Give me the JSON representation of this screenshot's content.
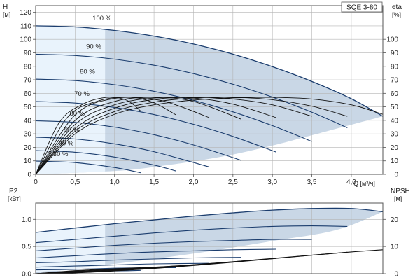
{
  "chart_data": [
    {
      "type": "line",
      "title": "SQE 3-80",
      "xlabel": "Q [м³/ч]",
      "ylabel": "H [м]",
      "y2label": "eta [%]",
      "ylabel_parts": [
        "H",
        "[м]"
      ],
      "y2label_parts": [
        "eta",
        "[%]"
      ],
      "xlim": [
        0,
        4.4
      ],
      "ylim": [
        0,
        125
      ],
      "y2lim": [
        0,
        125
      ],
      "x_ticks": [
        0,
        0.5,
        1.0,
        1.5,
        2.0,
        2.5,
        3.0,
        3.5,
        4.0
      ],
      "x_tick_labels": [
        "0",
        "0,5",
        "1,0",
        "1,5",
        "2,0",
        "2,5",
        "3,0",
        "3,5",
        "4,0"
      ],
      "y_ticks": [
        0,
        10,
        20,
        30,
        40,
        50,
        60,
        70,
        80,
        90,
        100,
        110,
        120
      ],
      "y2_ticks": [
        0,
        10,
        20,
        30,
        40,
        50,
        60,
        70,
        80,
        90,
        100
      ],
      "grid": true,
      "operating_area": {
        "color": "#c9d7e6",
        "light_color": "#e9f3fc",
        "light_x_end": 0.88,
        "boundary_x": [
          0,
          0.5,
          1.0,
          1.5,
          2.0,
          2.5,
          3.0,
          3.5,
          4.0,
          4.4,
          3.5,
          3.0,
          2.5,
          2.0,
          1.5,
          1.3,
          1.0,
          0
        ],
        "boundary_y": [
          110,
          109.2,
          106.6,
          102.4,
          96.5,
          89,
          79.7,
          68.8,
          56,
          43,
          29,
          21.3,
          14.7,
          9.6,
          5.5,
          4,
          2.5,
          0
        ]
      },
      "series": [
        {
          "name": "100 %",
          "x": [
            0,
            0.5,
            1.0,
            1.5,
            2.0,
            2.5,
            3.0,
            3.5,
            4.0,
            4.4
          ],
          "values": [
            110,
            109.2,
            106.6,
            102.4,
            96.5,
            89,
            79.7,
            68.8,
            56,
            43
          ],
          "label_at": [
            0.72,
            114
          ]
        },
        {
          "name": "90 %",
          "x": [
            0,
            0.5,
            1.0,
            1.5,
            2.0,
            2.5,
            3.0,
            3.5,
            3.95
          ],
          "values": [
            89,
            88,
            85.3,
            80.8,
            74.6,
            66.7,
            57.2,
            46,
            34.5
          ],
          "label_at": [
            0.64,
            93
          ]
        },
        {
          "name": "80 %",
          "x": [
            0,
            0.5,
            1.0,
            1.5,
            2.0,
            2.5,
            3.0,
            3.5
          ],
          "values": [
            70.5,
            69.4,
            66.4,
            61.5,
            54.8,
            46.3,
            36.1,
            24.4
          ],
          "label_at": [
            0.56,
            74.5
          ]
        },
        {
          "name": "70 %",
          "x": [
            0,
            0.5,
            1.0,
            1.5,
            2.0,
            2.5,
            3.05
          ],
          "values": [
            54,
            52.8,
            49.6,
            44.3,
            37.1,
            28.1,
            16.5
          ],
          "label_at": [
            0.49,
            58
          ]
        },
        {
          "name": "60 %",
          "x": [
            0,
            0.5,
            1.0,
            1.5,
            2.0,
            2.6
          ],
          "values": [
            39.7,
            38.5,
            35,
            29.4,
            21.8,
            10.5
          ],
          "label_at": [
            0.43,
            43.5
          ]
        },
        {
          "name": "50 %",
          "x": [
            0,
            0.5,
            1.0,
            1.5,
            2.2
          ],
          "values": [
            27.5,
            26.2,
            22.6,
            16.8,
            5.5
          ],
          "label_at": [
            0.36,
            31
          ]
        },
        {
          "name": "40 %",
          "x": [
            0,
            0.5,
            1.0,
            1.5,
            1.78
          ],
          "values": [
            17.6,
            16.4,
            12.8,
            6.9,
            2.5
          ],
          "label_at": [
            0.29,
            21.5
          ]
        },
        {
          "name": "30 %",
          "x": [
            0,
            0.5,
            1.0,
            1.33
          ],
          "values": [
            9.9,
            8.7,
            5.1,
            1.2
          ],
          "label_at": [
            0.22,
            13.5
          ]
        }
      ],
      "efficiency_series": [
        {
          "x": [
            0,
            0.5,
            1.0,
            1.5,
            2.0,
            2.5,
            3.0,
            3.5,
            4.0,
            4.4
          ],
          "values": [
            0,
            30,
            44.5,
            51.5,
            55,
            56.6,
            57,
            55.8,
            51.5,
            44.5
          ]
        },
        {
          "x": [
            0,
            0.5,
            1.0,
            1.5,
            2.0,
            2.5,
            3.0,
            3.5,
            3.95
          ],
          "values": [
            0,
            32,
            46.5,
            53.5,
            56.5,
            57,
            55.3,
            50.5,
            43
          ]
        },
        {
          "x": [
            0,
            0.5,
            1.0,
            1.5,
            2.0,
            2.5,
            3.0,
            3.5
          ],
          "values": [
            0,
            34,
            49,
            55.5,
            57,
            55.8,
            51.5,
            43
          ]
        },
        {
          "x": [
            0,
            0.5,
            1.0,
            1.5,
            2.0,
            2.5,
            3.05
          ],
          "values": [
            0,
            37,
            51.5,
            56.5,
            56.5,
            52,
            42
          ]
        },
        {
          "x": [
            0,
            0.5,
            1.0,
            1.5,
            2.0,
            2.6
          ],
          "values": [
            0,
            40,
            54,
            57,
            54,
            41
          ]
        },
        {
          "x": [
            0,
            0.5,
            1.0,
            1.5,
            1.8,
            2.2
          ],
          "values": [
            0,
            44,
            56.2,
            55.5,
            51,
            42
          ]
        },
        {
          "x": [
            0,
            0.4,
            0.8,
            1.2,
            1.5,
            1.78
          ],
          "values": [
            0,
            42,
            54.5,
            57,
            53,
            44
          ]
        },
        {
          "x": [
            0,
            0.3,
            0.6,
            0.9,
            1.15,
            1.33
          ],
          "values": [
            0,
            38.5,
            52,
            57,
            55,
            47
          ]
        }
      ]
    },
    {
      "type": "line",
      "xlabel": "",
      "ylabel": "P2 [кВт]",
      "y2label": "NPSH [м]",
      "ylabel_parts": [
        "P2",
        "[кВт]"
      ],
      "y2label_parts": [
        "NPSH",
        "[м]"
      ],
      "xlim": [
        0,
        4.4
      ],
      "ylim": [
        0,
        1.3
      ],
      "y2lim": [
        0,
        26
      ],
      "y_ticks": [
        0,
        0.5,
        1.0
      ],
      "y_tick_labels": [
        "0.0",
        "0.5",
        "1.0"
      ],
      "y2_ticks": [
        0,
        10,
        20
      ],
      "grid": true,
      "operating_area": {
        "color": "#c9d7e6",
        "light_color": "#e9f3fc",
        "light_x_end": 0.88,
        "boundary_x": [
          0,
          0.5,
          1.0,
          1.5,
          2.0,
          2.5,
          3.0,
          3.5,
          4.0,
          4.4,
          3.8,
          3.0,
          2.0,
          1.0,
          0
        ],
        "boundary_y": [
          0.76,
          0.84,
          0.92,
          0.99,
          1.06,
          1.12,
          1.17,
          1.2,
          1.2,
          1.14,
          0.8,
          0.6,
          0.37,
          0.18,
          0
        ]
      },
      "series": [
        {
          "x": [
            0,
            0.5,
            1.0,
            1.5,
            2.0,
            2.5,
            3.0,
            3.5,
            4.0,
            4.4
          ],
          "values": [
            0.76,
            0.84,
            0.92,
            0.99,
            1.06,
            1.12,
            1.17,
            1.2,
            1.2,
            1.14
          ]
        },
        {
          "x": [
            0,
            0.5,
            1.0,
            1.5,
            2.0,
            2.5,
            3.0,
            3.5,
            3.95
          ],
          "values": [
            0.57,
            0.63,
            0.69,
            0.75,
            0.8,
            0.84,
            0.87,
            0.88,
            0.87
          ]
        },
        {
          "x": [
            0,
            0.5,
            1.0,
            1.5,
            2.0,
            2.5,
            3.0,
            3.5
          ],
          "values": [
            0.42,
            0.47,
            0.52,
            0.56,
            0.59,
            0.61,
            0.63,
            0.63
          ]
        },
        {
          "x": [
            0,
            0.5,
            1.0,
            1.5,
            2.0,
            2.5,
            3.05
          ],
          "values": [
            0.29,
            0.33,
            0.37,
            0.4,
            0.42,
            0.44,
            0.45
          ]
        },
        {
          "x": [
            0,
            0.5,
            1.0,
            1.5,
            2.0,
            2.6
          ],
          "values": [
            0.2,
            0.22,
            0.25,
            0.27,
            0.29,
            0.3
          ]
        },
        {
          "x": [
            0,
            0.5,
            1.0,
            1.5,
            2.2
          ],
          "values": [
            0.12,
            0.14,
            0.16,
            0.18,
            0.19
          ]
        },
        {
          "x": [
            0,
            0.5,
            1.0,
            1.5,
            1.78
          ],
          "values": [
            0.07,
            0.08,
            0.1,
            0.11,
            0.11
          ]
        },
        {
          "x": [
            0,
            0.5,
            1.0,
            1.33
          ],
          "values": [
            0.03,
            0.04,
            0.05,
            0.06
          ]
        }
      ],
      "npsh_series": [
        {
          "x": [
            0,
            0.5,
            1.0,
            1.5,
            2.0,
            2.5,
            3.0,
            3.5,
            4.0,
            4.4
          ],
          "values": [
            0,
            0.3,
            1.0,
            1.9,
            3.0,
            4.2,
            5.5,
            6.8,
            8.0,
            8.8
          ]
        },
        {
          "x": [
            0,
            0.5,
            1.0,
            1.5,
            2.0,
            2.5,
            3.0,
            3.5,
            3.95
          ],
          "values": [
            0,
            0.5,
            1.2,
            2.1,
            3.2,
            4.4,
            5.6,
            6.8,
            7.9
          ]
        },
        {
          "x": [
            0,
            0.5,
            1.0,
            1.5,
            2.0,
            2.5,
            3.05
          ],
          "values": [
            0,
            0.7,
            1.4,
            2.3,
            3.3,
            4.4,
            5.6
          ]
        },
        {
          "x": [
            0,
            0.5,
            1.0,
            1.5,
            2.2
          ],
          "values": [
            0,
            0.9,
            1.6,
            2.4,
            3.4
          ]
        },
        {
          "x": [
            0,
            0.5,
            1.0,
            1.33
          ],
          "values": [
            0,
            1.1,
            1.8,
            2.2
          ]
        }
      ]
    }
  ],
  "colors": {
    "curve": "#1b3d6e",
    "area": "#c9d7e6",
    "area_light": "#e9f3fc",
    "grid": "#b4b4b4",
    "eff": "#111111"
  }
}
